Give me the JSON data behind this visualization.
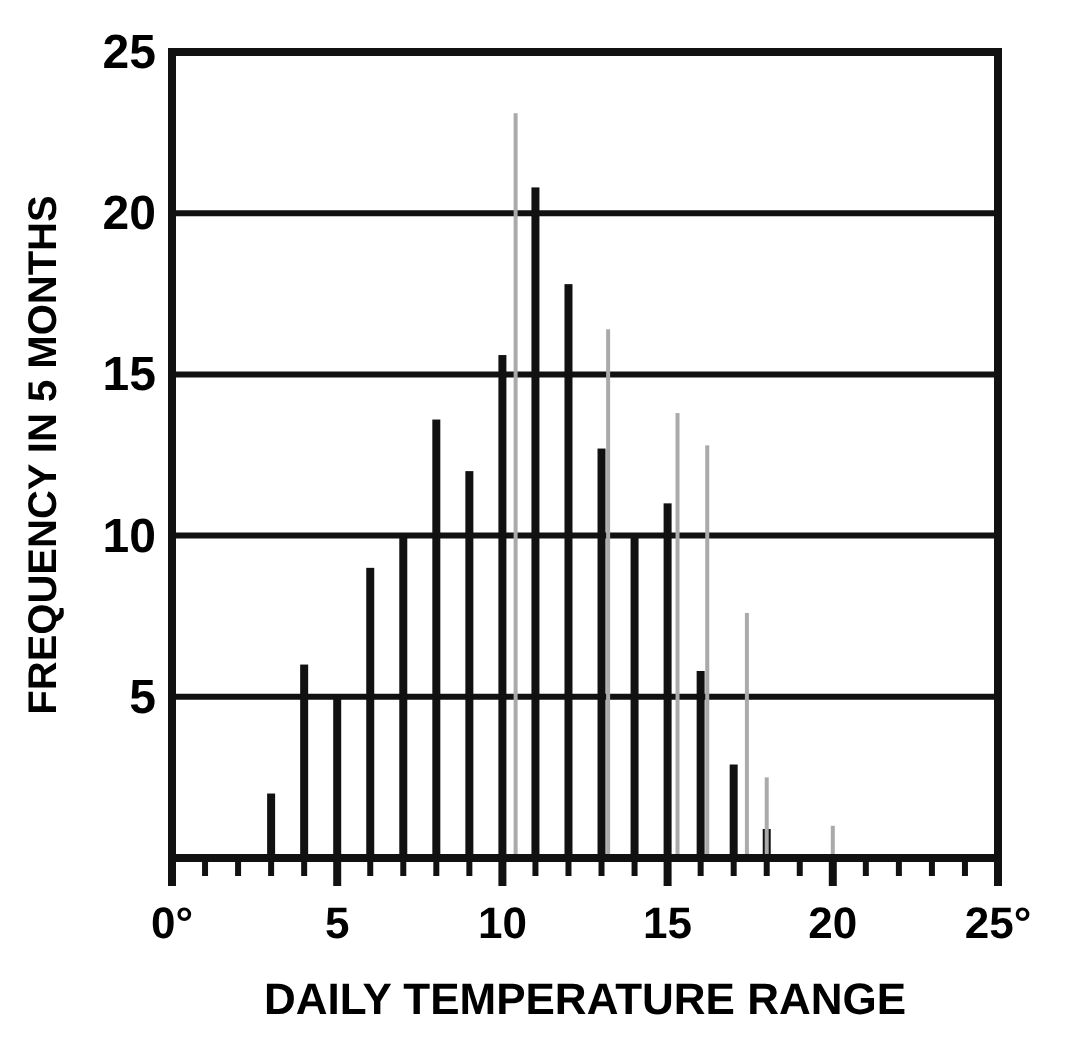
{
  "chart_data": {
    "type": "bar",
    "xlabel": "DAILY TEMPERATURE RANGE",
    "ylabel": "FREQUENCY IN 5 MONTHS",
    "xlim": [
      0,
      25
    ],
    "xticks": [
      {
        "value": 0,
        "label": "0°"
      },
      {
        "value": 1,
        "label": null
      },
      {
        "value": 2,
        "label": null
      },
      {
        "value": 3,
        "label": null
      },
      {
        "value": 4,
        "label": null
      },
      5,
      {
        "value": 6,
        "label": null
      },
      {
        "value": 7,
        "label": null
      },
      {
        "value": 8,
        "label": null
      },
      {
        "value": 9,
        "label": null
      },
      10,
      {
        "value": 11,
        "label": null
      },
      {
        "value": 12,
        "label": null
      },
      {
        "value": 13,
        "label": null
      },
      {
        "value": 14,
        "label": null
      },
      15,
      {
        "value": 16,
        "label": null
      },
      {
        "value": 17,
        "label": null
      },
      {
        "value": 18,
        "label": null
      },
      {
        "value": 19,
        "label": null
      },
      20,
      {
        "value": 21,
        "label": null
      },
      {
        "value": 22,
        "label": null
      },
      {
        "value": 23,
        "label": null
      },
      {
        "value": 24,
        "label": null
      },
      {
        "value": 25,
        "label": "25°"
      }
    ],
    "ylim": [
      0,
      25
    ],
    "yticks": [
      5,
      10,
      15,
      20,
      25
    ],
    "grid": "y",
    "series": [
      {
        "color": "#111111",
        "x": [
          3,
          4,
          5,
          6,
          7,
          8,
          9,
          10,
          11,
          12,
          13,
          14,
          15,
          16,
          17,
          18
        ],
        "values": [
          2,
          6,
          5,
          9,
          10,
          13.6,
          12,
          15.6,
          20.8,
          17.8,
          12.7,
          10,
          11,
          5.8,
          2.9,
          0.9
        ]
      },
      {
        "color": "#aaaaaa",
        "x": [
          10.4,
          13.2,
          15.3,
          16.2,
          17.4,
          18,
          20
        ],
        "values": [
          23.1,
          16.4,
          13.8,
          12.8,
          7.6,
          2.5,
          1
        ]
      }
    ]
  }
}
